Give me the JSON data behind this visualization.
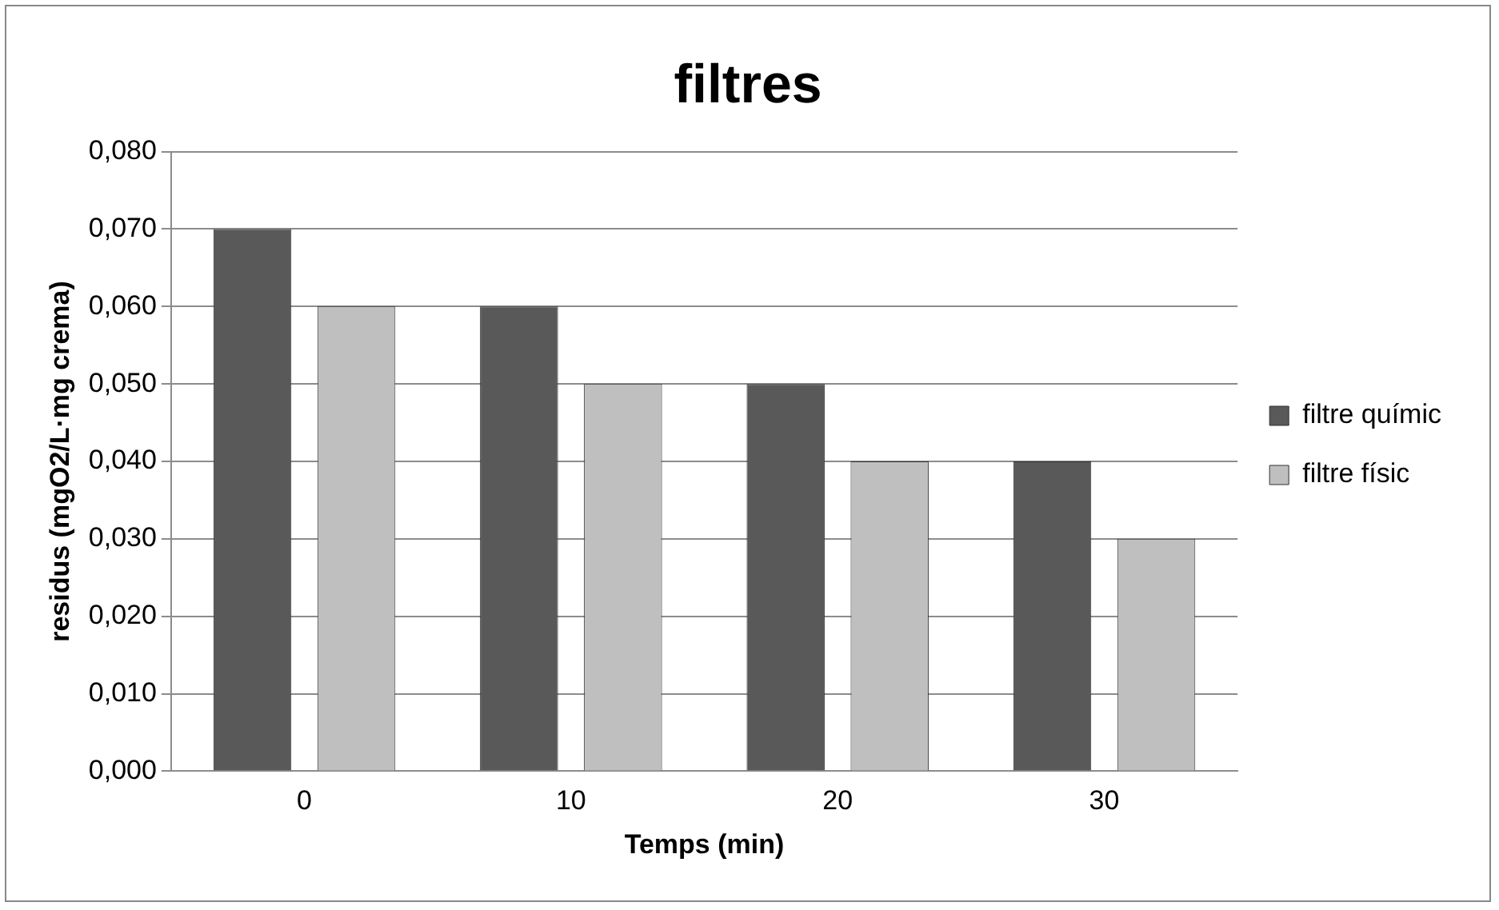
{
  "chart_data": {
    "type": "bar",
    "title": "filtres",
    "xlabel": "Temps (min)",
    "ylabel": "residus (mgO2/L·mg crema)",
    "categories": [
      "0",
      "10",
      "20",
      "30"
    ],
    "series": [
      {
        "name": "filtre químic",
        "color": "#595959",
        "values": [
          0.07,
          0.06,
          0.05,
          0.04
        ]
      },
      {
        "name": "filtre físic",
        "color": "#bfbfbf",
        "values": [
          0.06,
          0.05,
          0.04,
          0.03
        ]
      }
    ],
    "ylim": [
      0,
      0.08
    ],
    "yticks": [
      {
        "value": 0,
        "label": "0,000"
      },
      {
        "value": 0.01,
        "label": "0,010"
      },
      {
        "value": 0.02,
        "label": "0,020"
      },
      {
        "value": 0.03,
        "label": "0,030"
      },
      {
        "value": 0.04,
        "label": "0,040"
      },
      {
        "value": 0.05,
        "label": "0,050"
      },
      {
        "value": 0.06,
        "label": "0,060"
      },
      {
        "value": 0.07,
        "label": "0,070"
      },
      {
        "value": 0.08,
        "label": "0,080"
      }
    ],
    "grid": "y",
    "legend": "right"
  }
}
